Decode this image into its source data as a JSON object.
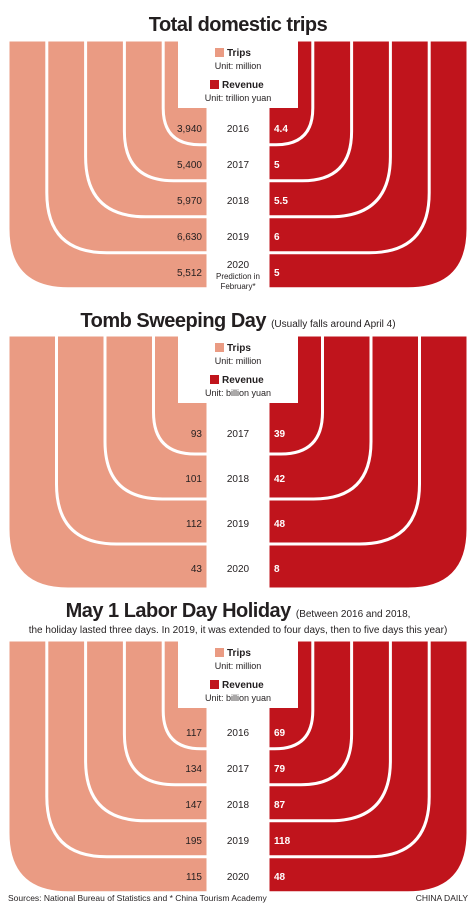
{
  "colors": {
    "trips": "#ea9b83",
    "revenue": "#c0141c",
    "text": "#231f20"
  },
  "footer": {
    "sources": "Sources: National Bureau of Statistics and * China Tourism Academy",
    "credit": "CHINA DAILY"
  },
  "chart_data": [
    {
      "type": "bar",
      "title": "Total domestic trips",
      "note": "",
      "note2": "",
      "categories": [
        "2016",
        "2017",
        "2018",
        "2019",
        "2020"
      ],
      "category_notes": [
        "",
        "",
        "",
        "",
        "Prediction in February*"
      ],
      "series": [
        {
          "name": "Trips",
          "unit": "Unit: million",
          "values": [
            3940,
            5400,
            5970,
            6630,
            5512
          ],
          "labels": [
            "3,940",
            "5,400",
            "5,970",
            "6,630",
            "5,512"
          ]
        },
        {
          "name": "Revenue",
          "unit": "Unit: trillion yuan",
          "values": [
            4.4,
            5,
            5.5,
            6,
            5
          ],
          "labels": [
            "4.4",
            "5",
            "5.5",
            "6",
            "5"
          ]
        }
      ]
    },
    {
      "type": "bar",
      "title": "Tomb Sweeping Day",
      "note": "(Usually falls around April 4)",
      "note2": "",
      "categories": [
        "2017",
        "2018",
        "2019",
        "2020"
      ],
      "category_notes": [
        "",
        "",
        "",
        ""
      ],
      "series": [
        {
          "name": "Trips",
          "unit": "Unit: million",
          "values": [
            93,
            101,
            112,
            43
          ],
          "labels": [
            "93",
            "101",
            "112",
            "43"
          ]
        },
        {
          "name": "Revenue",
          "unit": "Unit: billion yuan",
          "values": [
            39,
            42,
            48,
            8
          ],
          "labels": [
            "39",
            "42",
            "48",
            "8"
          ]
        }
      ]
    },
    {
      "type": "bar",
      "title": "May 1 Labor Day Holiday",
      "note": "(Between 2016 and 2018,",
      "note2": "the holiday lasted three days. In 2019, it was extended to four days, then to five days this year)",
      "categories": [
        "2016",
        "2017",
        "2018",
        "2019",
        "2020"
      ],
      "category_notes": [
        "",
        "",
        "",
        "",
        ""
      ],
      "series": [
        {
          "name": "Trips",
          "unit": "Unit: million",
          "values": [
            117,
            134,
            147,
            195,
            115
          ],
          "labels": [
            "117",
            "134",
            "147",
            "195",
            "115"
          ]
        },
        {
          "name": "Revenue",
          "unit": "Unit: billion yuan",
          "values": [
            69,
            79,
            87,
            118,
            48
          ],
          "labels": [
            "69",
            "79",
            "87",
            "118",
            "48"
          ]
        }
      ]
    }
  ]
}
